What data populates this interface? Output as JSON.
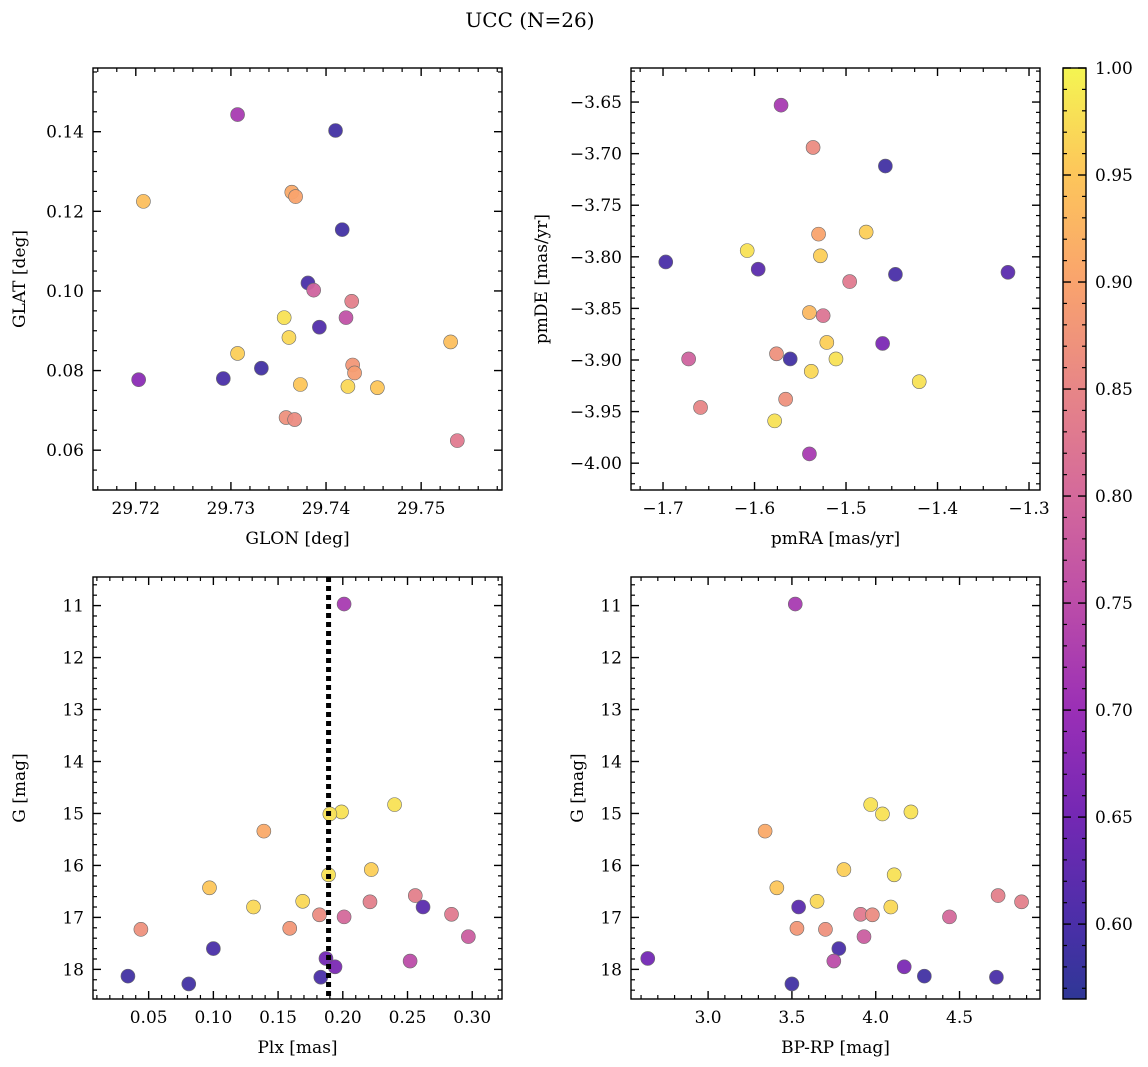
{
  "title": "UCC (N=26)",
  "colorbar": {
    "colormap": "plasma",
    "range": [
      0.565,
      1.0
    ],
    "ticks": [
      0.6,
      0.65,
      0.7,
      0.75,
      0.8,
      0.85,
      0.9,
      0.95,
      1.0
    ],
    "tick_labels": [
      "0.60",
      "0.65",
      "0.70",
      "0.75",
      "0.80",
      "0.85",
      "0.90",
      "0.95",
      "1.00"
    ]
  },
  "chart_data": [
    {
      "type": "scatter",
      "xlabel": "GLON [deg]",
      "ylabel": "GLAT [deg]",
      "xlim": [
        29.7155,
        29.7585
      ],
      "ylim": [
        0.05,
        0.156
      ],
      "xticks": [
        29.72,
        29.73,
        29.74,
        29.75
      ],
      "xtick_labels": [
        "29.72",
        "29.73",
        "29.74",
        "29.75"
      ],
      "yticks": [
        0.06,
        0.08,
        0.1,
        0.12,
        0.14
      ],
      "ytick_labels": [
        "0.06",
        "0.08",
        "0.10",
        "0.12",
        "0.14"
      ],
      "points": [
        {
          "x": 29.7307,
          "y": 0.1443,
          "c": 0.72
        },
        {
          "x": 29.741,
          "y": 0.1403,
          "c": 0.59
        },
        {
          "x": 29.7208,
          "y": 0.1225,
          "c": 0.94
        },
        {
          "x": 29.7364,
          "y": 0.1248,
          "c": 0.91
        },
        {
          "x": 29.7368,
          "y": 0.1237,
          "c": 0.9
        },
        {
          "x": 29.7417,
          "y": 0.1154,
          "c": 0.59
        },
        {
          "x": 29.7381,
          "y": 0.102,
          "c": 0.6
        },
        {
          "x": 29.7387,
          "y": 0.1002,
          "c": 0.79
        },
        {
          "x": 29.7427,
          "y": 0.0974,
          "c": 0.84
        },
        {
          "x": 29.7356,
          "y": 0.0933,
          "c": 0.98
        },
        {
          "x": 29.7421,
          "y": 0.0933,
          "c": 0.76
        },
        {
          "x": 29.7393,
          "y": 0.0909,
          "c": 0.61
        },
        {
          "x": 29.7361,
          "y": 0.0883,
          "c": 0.97
        },
        {
          "x": 29.7531,
          "y": 0.0872,
          "c": 0.94
        },
        {
          "x": 29.7307,
          "y": 0.0843,
          "c": 0.96
        },
        {
          "x": 29.7428,
          "y": 0.0814,
          "c": 0.88
        },
        {
          "x": 29.7332,
          "y": 0.0806,
          "c": 0.59
        },
        {
          "x": 29.743,
          "y": 0.0794,
          "c": 0.89
        },
        {
          "x": 29.7292,
          "y": 0.078,
          "c": 0.6
        },
        {
          "x": 29.7203,
          "y": 0.0777,
          "c": 0.68
        },
        {
          "x": 29.7373,
          "y": 0.0765,
          "c": 0.95
        },
        {
          "x": 29.7423,
          "y": 0.076,
          "c": 0.97
        },
        {
          "x": 29.7454,
          "y": 0.0757,
          "c": 0.95
        },
        {
          "x": 29.7358,
          "y": 0.0682,
          "c": 0.87
        },
        {
          "x": 29.7367,
          "y": 0.0677,
          "c": 0.86
        },
        {
          "x": 29.7538,
          "y": 0.0624,
          "c": 0.83
        }
      ]
    },
    {
      "type": "scatter",
      "xlabel": "pmRA [mas/yr]",
      "ylabel": "pmDE [mas/yr]",
      "xlim": [
        -1.735,
        -1.288
      ],
      "ylim": [
        -4.026,
        -3.617
      ],
      "xticks": [
        -1.7,
        -1.6,
        -1.5,
        -1.4,
        -1.3
      ],
      "xtick_labels": [
        "−1.7",
        "−1.6",
        "−1.5",
        "−1.4",
        "−1.3"
      ],
      "yticks": [
        -4.0,
        -3.95,
        -3.9,
        -3.85,
        -3.8,
        -3.75,
        -3.7,
        -3.65
      ],
      "ytick_labels": [
        "−4.00",
        "−3.95",
        "−3.90",
        "−3.85",
        "−3.80",
        "−3.75",
        "−3.70",
        "−3.65"
      ],
      "points": [
        {
          "x": -1.571,
          "y": -3.653,
          "c": 0.72
        },
        {
          "x": -1.536,
          "y": -3.694,
          "c": 0.86
        },
        {
          "x": -1.457,
          "y": -3.712,
          "c": 0.59
        },
        {
          "x": -1.478,
          "y": -3.776,
          "c": 0.96
        },
        {
          "x": -1.53,
          "y": -3.778,
          "c": 0.9
        },
        {
          "x": -1.608,
          "y": -3.794,
          "c": 0.98
        },
        {
          "x": -1.528,
          "y": -3.799,
          "c": 0.96
        },
        {
          "x": -1.697,
          "y": -3.805,
          "c": 0.6
        },
        {
          "x": -1.596,
          "y": -3.812,
          "c": 0.62
        },
        {
          "x": -1.323,
          "y": -3.815,
          "c": 0.62
        },
        {
          "x": -1.446,
          "y": -3.817,
          "c": 0.6
        },
        {
          "x": -1.496,
          "y": -3.824,
          "c": 0.83
        },
        {
          "x": -1.54,
          "y": -3.854,
          "c": 0.93
        },
        {
          "x": -1.525,
          "y": -3.857,
          "c": 0.82
        },
        {
          "x": -1.521,
          "y": -3.883,
          "c": 0.96
        },
        {
          "x": -1.46,
          "y": -3.884,
          "c": 0.66
        },
        {
          "x": -1.576,
          "y": -3.894,
          "c": 0.87
        },
        {
          "x": -1.672,
          "y": -3.899,
          "c": 0.79
        },
        {
          "x": -1.561,
          "y": -3.899,
          "c": 0.59
        },
        {
          "x": -1.511,
          "y": -3.899,
          "c": 0.98
        },
        {
          "x": -1.538,
          "y": -3.911,
          "c": 0.97
        },
        {
          "x": -1.42,
          "y": -3.921,
          "c": 0.98
        },
        {
          "x": -1.566,
          "y": -3.938,
          "c": 0.87
        },
        {
          "x": -1.659,
          "y": -3.946,
          "c": 0.85
        },
        {
          "x": -1.578,
          "y": -3.959,
          "c": 0.98
        },
        {
          "x": -1.54,
          "y": -3.991,
          "c": 0.72
        }
      ]
    },
    {
      "type": "scatter",
      "xlabel": "Plx [mas]",
      "ylabel": "G [mag]",
      "xlim": [
        0.007,
        0.323
      ],
      "ylim": [
        18.57,
        10.45
      ],
      "y_inverted": true,
      "vline": {
        "x": 0.189,
        "style": "dotted"
      },
      "xticks": [
        0.05,
        0.1,
        0.15,
        0.2,
        0.25,
        0.3
      ],
      "xtick_labels": [
        "0.05",
        "0.10",
        "0.15",
        "0.20",
        "0.25",
        "0.30"
      ],
      "yticks": [
        11,
        12,
        13,
        14,
        15,
        16,
        17,
        18
      ],
      "ytick_labels": [
        "11",
        "12",
        "13",
        "14",
        "15",
        "16",
        "17",
        "18"
      ],
      "points": [
        {
          "x": 0.201,
          "y": 10.97,
          "c": 0.72
        },
        {
          "x": 0.24,
          "y": 14.83,
          "c": 0.98
        },
        {
          "x": 0.199,
          "y": 14.97,
          "c": 0.98
        },
        {
          "x": 0.19,
          "y": 15.01,
          "c": 0.98
        },
        {
          "x": 0.139,
          "y": 15.34,
          "c": 0.91
        },
        {
          "x": 0.222,
          "y": 16.08,
          "c": 0.96
        },
        {
          "x": 0.189,
          "y": 16.18,
          "c": 0.98
        },
        {
          "x": 0.097,
          "y": 16.43,
          "c": 0.95
        },
        {
          "x": 0.256,
          "y": 16.58,
          "c": 0.84
        },
        {
          "x": 0.169,
          "y": 16.69,
          "c": 0.97
        },
        {
          "x": 0.221,
          "y": 16.7,
          "c": 0.84
        },
        {
          "x": 0.262,
          "y": 16.8,
          "c": 0.62
        },
        {
          "x": 0.131,
          "y": 16.8,
          "c": 0.97
        },
        {
          "x": 0.284,
          "y": 16.94,
          "c": 0.83
        },
        {
          "x": 0.182,
          "y": 16.95,
          "c": 0.86
        },
        {
          "x": 0.201,
          "y": 16.99,
          "c": 0.8
        },
        {
          "x": 0.159,
          "y": 17.21,
          "c": 0.88
        },
        {
          "x": 0.044,
          "y": 17.23,
          "c": 0.87
        },
        {
          "x": 0.297,
          "y": 17.37,
          "c": 0.78
        },
        {
          "x": 0.1,
          "y": 17.6,
          "c": 0.6
        },
        {
          "x": 0.187,
          "y": 17.79,
          "c": 0.65
        },
        {
          "x": 0.252,
          "y": 17.84,
          "c": 0.75
        },
        {
          "x": 0.194,
          "y": 17.95,
          "c": 0.66
        },
        {
          "x": 0.034,
          "y": 18.13,
          "c": 0.59
        },
        {
          "x": 0.183,
          "y": 18.15,
          "c": 0.6
        },
        {
          "x": 0.081,
          "y": 18.28,
          "c": 0.59
        }
      ]
    },
    {
      "type": "scatter",
      "xlabel": "BP-RP [mag]",
      "ylabel": "G [mag]",
      "xlim": [
        2.54,
        4.98
      ],
      "ylim": [
        18.57,
        10.45
      ],
      "y_inverted": true,
      "xticks": [
        3.0,
        3.5,
        4.0,
        4.5
      ],
      "xtick_labels": [
        "3.0",
        "3.5",
        "4.0",
        "4.5"
      ],
      "yticks": [
        11,
        12,
        13,
        14,
        15,
        16,
        17,
        18
      ],
      "ytick_labels": [
        "11",
        "12",
        "13",
        "14",
        "15",
        "16",
        "17",
        "18"
      ],
      "points": [
        {
          "x": 3.52,
          "y": 10.97,
          "c": 0.72
        },
        {
          "x": 3.97,
          "y": 14.83,
          "c": 0.98
        },
        {
          "x": 4.21,
          "y": 14.97,
          "c": 0.98
        },
        {
          "x": 4.04,
          "y": 15.01,
          "c": 0.98
        },
        {
          "x": 3.34,
          "y": 15.34,
          "c": 0.91
        },
        {
          "x": 3.81,
          "y": 16.08,
          "c": 0.96
        },
        {
          "x": 4.11,
          "y": 16.18,
          "c": 0.98
        },
        {
          "x": 3.41,
          "y": 16.43,
          "c": 0.95
        },
        {
          "x": 4.73,
          "y": 16.58,
          "c": 0.84
        },
        {
          "x": 3.65,
          "y": 16.69,
          "c": 0.97
        },
        {
          "x": 4.87,
          "y": 16.7,
          "c": 0.84
        },
        {
          "x": 3.54,
          "y": 16.8,
          "c": 0.62
        },
        {
          "x": 4.09,
          "y": 16.8,
          "c": 0.97
        },
        {
          "x": 3.91,
          "y": 16.94,
          "c": 0.83
        },
        {
          "x": 3.98,
          "y": 16.95,
          "c": 0.86
        },
        {
          "x": 4.44,
          "y": 16.99,
          "c": 0.8
        },
        {
          "x": 3.53,
          "y": 17.21,
          "c": 0.88
        },
        {
          "x": 3.7,
          "y": 17.23,
          "c": 0.87
        },
        {
          "x": 3.93,
          "y": 17.37,
          "c": 0.78
        },
        {
          "x": 3.78,
          "y": 17.6,
          "c": 0.6
        },
        {
          "x": 2.64,
          "y": 17.79,
          "c": 0.65
        },
        {
          "x": 3.75,
          "y": 17.84,
          "c": 0.75
        },
        {
          "x": 4.17,
          "y": 17.95,
          "c": 0.66
        },
        {
          "x": 4.29,
          "y": 18.13,
          "c": 0.59
        },
        {
          "x": 4.72,
          "y": 18.15,
          "c": 0.6
        },
        {
          "x": 3.5,
          "y": 18.28,
          "c": 0.59
        }
      ]
    }
  ]
}
